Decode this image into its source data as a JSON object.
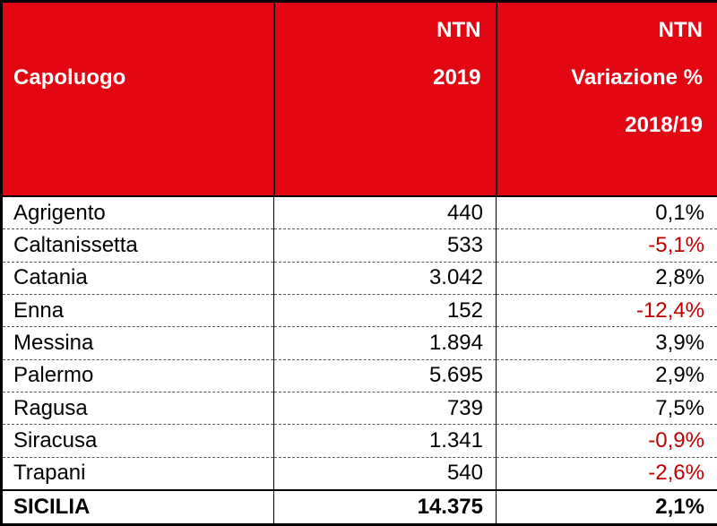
{
  "table": {
    "header": [
      [
        "Capoluogo"
      ],
      [
        "NTN",
        "2019"
      ],
      [
        "NTN",
        "Variazione %",
        "2018/19"
      ]
    ],
    "rows": [
      [
        "Agrigento",
        "440",
        "0,1%"
      ],
      [
        "Caltanissetta",
        "533",
        "-5,1%"
      ],
      [
        "Catania",
        "3.042",
        "2,8%"
      ],
      [
        "Enna",
        "152",
        "-12,4%"
      ],
      [
        "Messina",
        "1.894",
        "3,9%"
      ],
      [
        "Palermo",
        "5.695",
        "2,9%"
      ],
      [
        "Ragusa",
        "739",
        "7,5%"
      ],
      [
        "Siracusa",
        "1.341",
        "-0,9%"
      ],
      [
        "Trapani",
        "540",
        "-2,6%"
      ]
    ],
    "total": [
      "SICILIA",
      "14.375",
      "2,1%"
    ]
  }
}
